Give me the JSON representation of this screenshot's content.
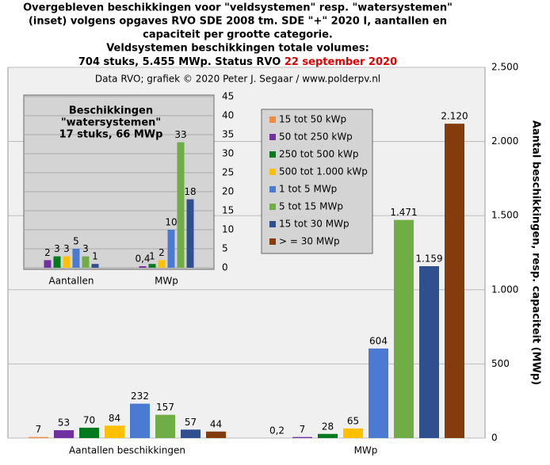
{
  "chart_data": [
    {
      "type": "bar",
      "title": [
        "Overgebleven beschikkingen voor \"veldsystemen\" resp. \"watersystemen\"",
        "(inset) volgens opgaves RVO SDE 2008 tm. SDE \"+\" 2020 I, aantallen en",
        "capaciteit per grootte categorie.",
        "Veldsystemen beschikkingen totale volumes:",
        "704 stuks, 5.455 MWp. Status RVO "
      ],
      "title_date": "22 september 2020",
      "subtitle": "Data RVO; grafiek © 2020 Peter J. Segaar / www.polderpv.nl",
      "y_label": "Aantal beschikkingen, resp. capaciteit (MWp)",
      "categories": [
        "Aantallen beschikkingen",
        "MWp"
      ],
      "series": [
        {
          "name": "15 tot 50 kWp",
          "color": "#f08a3c",
          "values": [
            7,
            0.2
          ],
          "value_labels": [
            "7",
            "0,2"
          ]
        },
        {
          "name": "50 tot 250 kWp",
          "color": "#7030a0",
          "values": [
            53,
            7
          ],
          "value_labels": [
            "53",
            "7"
          ]
        },
        {
          "name": "250 tot 500 kWp",
          "color": "#007a1e",
          "values": [
            70,
            28
          ],
          "value_labels": [
            "70",
            "28"
          ]
        },
        {
          "name": "500 tot 1.000 kWp",
          "color": "#ffc000",
          "values": [
            84,
            65
          ],
          "value_labels": [
            "84",
            "65"
          ]
        },
        {
          "name": "1 tot 5 MWp",
          "color": "#4a7bd0",
          "values": [
            232,
            604
          ],
          "value_labels": [
            "232",
            "604"
          ]
        },
        {
          "name": "5 tot 15 MWp",
          "color": "#70ad47",
          "values": [
            157,
            1471
          ],
          "value_labels": [
            "157",
            "1.471"
          ]
        },
        {
          "name": "15 tot 30 MWp",
          "color": "#2f4f8f",
          "values": [
            57,
            1159
          ],
          "value_labels": [
            "57",
            "1.159"
          ]
        },
        {
          "name": "> = 30 MWp",
          "color": "#843c0c",
          "values": [
            44,
            2120
          ],
          "value_labels": [
            "44",
            "2.120"
          ]
        }
      ],
      "ylim": [
        0,
        2500
      ],
      "yticks": [
        0,
        500,
        {
          "value": 1000,
          "label": "1.000"
        },
        {
          "value": 1500,
          "label": "1.500"
        },
        {
          "value": 2000,
          "label": "2.000"
        },
        {
          "value": 2500,
          "label": "2.500"
        }
      ],
      "grid": true
    },
    {
      "type": "bar",
      "title": [
        "Beschikkingen",
        "\"watersystemen\"",
        "17 stuks, 66 MWp"
      ],
      "categories": [
        "Aantallen",
        "MWp"
      ],
      "series": [
        {
          "color": "#f08a3c",
          "values": [
            null,
            null
          ]
        },
        {
          "color": "#7030a0",
          "values": [
            2,
            0.4
          ],
          "value_labels": [
            "2",
            "0,4"
          ]
        },
        {
          "color": "#007a1e",
          "values": [
            3,
            1
          ],
          "value_labels": [
            "3",
            "1"
          ]
        },
        {
          "color": "#ffc000",
          "values": [
            3,
            2
          ],
          "value_labels": [
            "3",
            "2"
          ]
        },
        {
          "color": "#4a7bd0",
          "values": [
            5,
            10
          ],
          "value_labels": [
            "5",
            "10"
          ]
        },
        {
          "color": "#70ad47",
          "values": [
            3,
            33
          ],
          "value_labels": [
            "3",
            "33"
          ]
        },
        {
          "color": "#2f4f8f",
          "values": [
            1,
            18
          ],
          "value_labels": [
            "1",
            "18"
          ]
        },
        {
          "color": "#843c0c",
          "values": [
            null,
            null
          ]
        }
      ],
      "ylim": [
        0,
        45
      ],
      "yticks": [
        0,
        5,
        10,
        15,
        20,
        25,
        30,
        35,
        40,
        45
      ],
      "grid": true
    }
  ]
}
